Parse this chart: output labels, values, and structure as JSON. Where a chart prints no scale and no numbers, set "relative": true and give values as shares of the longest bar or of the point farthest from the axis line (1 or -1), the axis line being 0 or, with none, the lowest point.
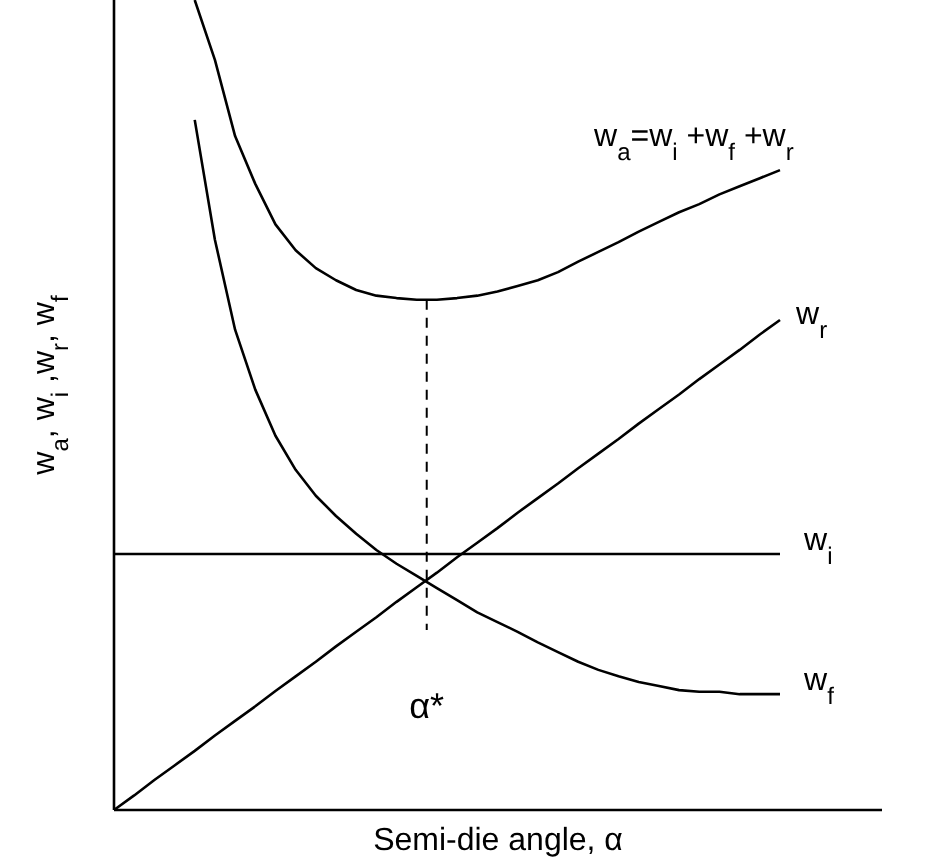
{
  "chart_data": {
    "type": "line",
    "relative": true,
    "xlabel": "Semi-die angle, α",
    "ylabel": "w$_{a}$, w$_{i}$ ,w$_{r}$, w$_{f}$",
    "legend": false,
    "marker": "none",
    "line_style": "solid",
    "grid": false,
    "categories": [
      null,
      null,
      null,
      null,
      null,
      null,
      null,
      null,
      null,
      null,
      null,
      null,
      null,
      null,
      null,
      null,
      null,
      null,
      null,
      null,
      null,
      null,
      null,
      null,
      null,
      null,
      null,
      null,
      null,
      null,
      null,
      null,
      null,
      null
    ],
    "series": [
      {
        "name": "w$_{r}$",
        "color": "#000000",
        "values": [
          0,
          0.018,
          0.037,
          0.055,
          0.073,
          0.092,
          0.11,
          0.128,
          0.147,
          0.165,
          0.183,
          0.202,
          0.22,
          0.238,
          0.257,
          0.275,
          0.293,
          0.312,
          0.33,
          0.348,
          0.367,
          0.385,
          0.403,
          0.422,
          0.44,
          0.458,
          0.477,
          0.495,
          0.513,
          0.532,
          0.55,
          0.568,
          0.587,
          0.605
        ]
      },
      {
        "name": "w$_{a}$=w$_{i}$ +w$_{f}$ +w$_{r}$",
        "color": "#000000",
        "values": [
          null,
          null,
          null,
          null,
          1,
          0.926,
          0.832,
          0.773,
          0.723,
          0.691,
          0.669,
          0.654,
          0.642,
          0.635,
          0.632,
          0.63,
          0.63,
          0.632,
          0.635,
          0.64,
          0.647,
          0.654,
          0.664,
          0.677,
          0.689,
          0.701,
          0.714,
          0.726,
          0.738,
          0.748,
          0.76,
          0.77,
          0.78,
          0.79
        ]
      },
      {
        "name": "w$_{i}$",
        "color": "#000000",
        "values": [
          0.316,
          0.316,
          0.316,
          0.316,
          0.316,
          0.316,
          0.316,
          0.316,
          0.316,
          0.316,
          0.316,
          0.316,
          0.316,
          0.316,
          0.316,
          0.316,
          0.316,
          0.316,
          0.316,
          0.316,
          0.316,
          0.316,
          0.316,
          0.316,
          0.316,
          0.316,
          0.316,
          0.316,
          0.316,
          0.316,
          0.316,
          0.316,
          0.316,
          0.316
        ]
      },
      {
        "name": "w$_{f}$",
        "color": "#000000",
        "values": [
          null,
          null,
          null,
          null,
          0.852,
          0.704,
          0.593,
          0.519,
          0.462,
          0.42,
          0.388,
          0.363,
          0.341,
          0.321,
          0.304,
          0.289,
          0.274,
          0.259,
          0.244,
          0.232,
          0.22,
          0.207,
          0.195,
          0.183,
          0.173,
          0.165,
          0.158,
          0.153,
          0.148,
          0.146,
          0.146,
          0.143,
          0.143,
          0.143
        ]
      }
    ],
    "annotations": [
      "α*"
    ]
  }
}
